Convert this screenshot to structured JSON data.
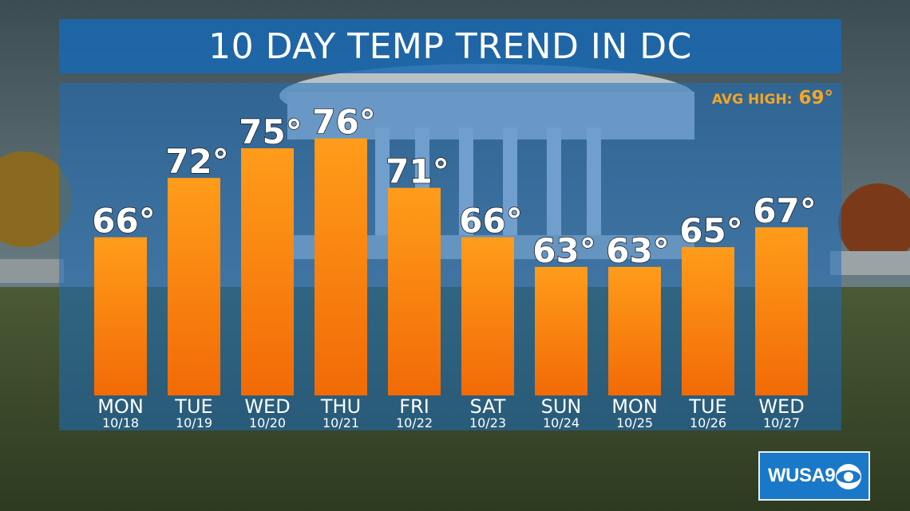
{
  "title": "10 DAY TEMP TREND IN DC",
  "avg_high": {
    "label": "AVG HIGH:",
    "value": "69°"
  },
  "logo": {
    "text": "WUSA9"
  },
  "colors": {
    "banner": "#1969b4",
    "bar_top": "#ff9c1a",
    "bar_bottom": "#f26a06",
    "avg_high_text": "#f5a623"
  },
  "chart_data": {
    "type": "bar",
    "title": "10 DAY TEMP TREND IN DC",
    "categories": [
      "MON",
      "TUE",
      "WED",
      "THU",
      "FRI",
      "SAT",
      "SUN",
      "MON",
      "TUE",
      "WED"
    ],
    "dates": [
      "10/18",
      "10/19",
      "10/20",
      "10/21",
      "10/22",
      "10/23",
      "10/24",
      "10/25",
      "10/26",
      "10/27"
    ],
    "values": [
      66,
      72,
      75,
      76,
      71,
      66,
      63,
      63,
      65,
      67
    ],
    "value_labels": [
      "66°",
      "72°",
      "75°",
      "76°",
      "71°",
      "66°",
      "63°",
      "63°",
      "65°",
      "67°"
    ],
    "ylim": [
      50,
      80
    ],
    "grid": false
  }
}
